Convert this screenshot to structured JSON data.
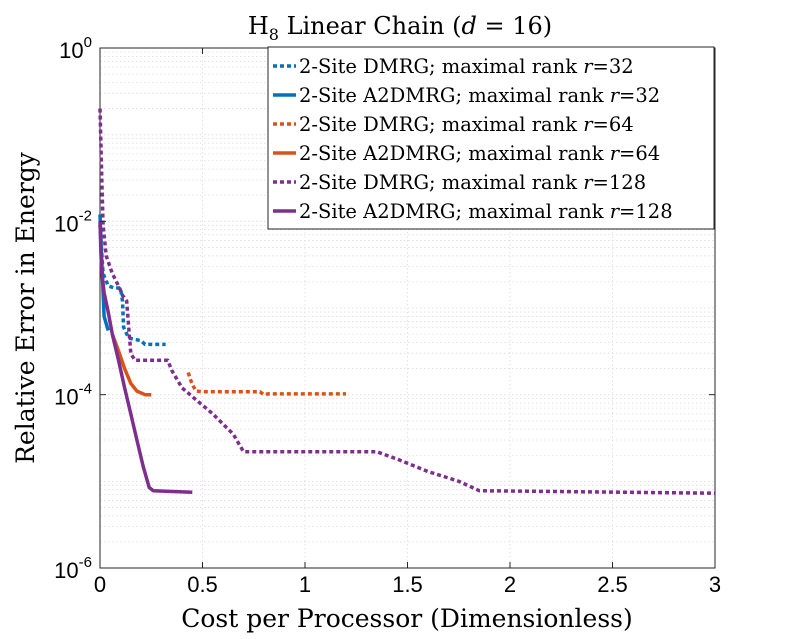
{
  "chart_data": {
    "type": "line",
    "title": "H₈ Linear Chain (d = 16)",
    "title_parts": {
      "main": "H",
      "sub": "8",
      "rest": " Linear Chain (",
      "var": "d",
      "eq": " = 16)"
    },
    "xlabel": "Cost per Processor (Dimensionless)",
    "ylabel": "Relative Error in Energy",
    "xlim": [
      0,
      3
    ],
    "ylim": [
      1e-06,
      1
    ],
    "yscale": "log",
    "grid": true,
    "legend_position": "top-right",
    "x_ticks": [
      {
        "value": 0,
        "label": "0"
      },
      {
        "value": 0.5,
        "label": "0.5"
      },
      {
        "value": 1,
        "label": "1"
      },
      {
        "value": 1.5,
        "label": "1.5"
      },
      {
        "value": 2,
        "label": "2"
      },
      {
        "value": 2.5,
        "label": "2.5"
      },
      {
        "value": 3,
        "label": "3"
      }
    ],
    "y_ticks": [
      {
        "value": 1e-06,
        "base": "10",
        "exp": "-6"
      },
      {
        "value": 0.0001,
        "base": "10",
        "exp": "-4"
      },
      {
        "value": 0.01,
        "base": "10",
        "exp": "-2"
      },
      {
        "value": 1,
        "base": "10",
        "exp": "0"
      }
    ],
    "series": [
      {
        "name": "2-Site DMRG; maximal rank r=32",
        "label_text": "2-Site DMRG; maximal rank ",
        "label_var": "r",
        "label_val": "=32",
        "color": "#0072BD",
        "style": "dotted",
        "x": [
          0,
          0.015,
          0.04,
          0.07,
          0.1,
          0.11,
          0.115,
          0.14,
          0.2,
          0.22,
          0.3,
          0.32
        ],
        "y": [
          0.009,
          0.0025,
          0.0018,
          0.0017,
          0.0017,
          0.0012,
          0.0006,
          0.00045,
          0.00042,
          0.00038,
          0.00038,
          0.00038
        ]
      },
      {
        "name": "2-Site A2DMRG; maximal rank r=32",
        "label_text": "2-Site A2DMRG; maximal rank ",
        "label_var": "r",
        "label_val": "=32",
        "color": "#0072BD",
        "style": "solid",
        "x": [
          0,
          0.01,
          0.02,
          0.04
        ],
        "y": [
          0.012,
          0.003,
          0.0008,
          0.00055
        ]
      },
      {
        "name": "2-Site DMRG; maximal rank r=64",
        "label_text": "2-Site DMRG; maximal rank ",
        "label_var": "r",
        "label_val": "=64",
        "color": "#D95319",
        "style": "dotted",
        "x": [
          0.43,
          0.45,
          0.47,
          0.5,
          0.78,
          0.8,
          0.82,
          1.0,
          1.2
        ],
        "y": [
          0.00018,
          0.00013,
          0.00011,
          0.000108,
          0.000108,
          0.0001,
          0.000102,
          0.000102,
          0.000102
        ]
      },
      {
        "name": "2-Site A2DMRG; maximal rank r=64",
        "label_text": "2-Site A2DMRG; maximal rank ",
        "label_var": "r",
        "label_val": "=64",
        "color": "#D95319",
        "style": "solid",
        "x": [
          0.06,
          0.09,
          0.12,
          0.15,
          0.18,
          0.22,
          0.25
        ],
        "y": [
          0.0005,
          0.00032,
          0.0002,
          0.000135,
          0.00011,
          0.0001,
          0.0001
        ]
      },
      {
        "name": "2-Site DMRG; maximal rank r=128",
        "label_text": "2-Site DMRG; maximal rank ",
        "label_var": "r",
        "label_val": "=128",
        "color": "#7E2F8E",
        "style": "dotted",
        "x": [
          0,
          0.005,
          0.01,
          0.015,
          0.03,
          0.06,
          0.09,
          0.1,
          0.11,
          0.12,
          0.13,
          0.14,
          0.15,
          0.17,
          0.33,
          0.35,
          0.4,
          0.45,
          0.55,
          0.65,
          0.7,
          1.35,
          1.45,
          1.6,
          1.75,
          1.85,
          3.0
        ],
        "y": [
          0.2,
          0.07,
          0.025,
          0.009,
          0.004,
          0.0025,
          0.0018,
          0.0016,
          0.0014,
          0.0013,
          0.0012,
          0.0006,
          0.0003,
          0.00025,
          0.00025,
          0.00019,
          0.00012,
          9.5e-05,
          6e-05,
          3.5e-05,
          2.2e-05,
          2.2e-05,
          1.8e-05,
          1.3e-05,
          1e-05,
          7.8e-06,
          7.3e-06
        ]
      },
      {
        "name": "2-Site A2DMRG; maximal rank r=128",
        "label_text": "2-Site A2DMRG; maximal rank ",
        "label_var": "r",
        "label_val": "=128",
        "color": "#7E2F8E",
        "style": "solid",
        "x": [
          0,
          0.005,
          0.01,
          0.02,
          0.04,
          0.06,
          0.09,
          0.12,
          0.15,
          0.18,
          0.21,
          0.24,
          0.26,
          0.45
        ],
        "y": [
          0.01,
          0.004,
          0.0025,
          0.0015,
          0.0009,
          0.0005,
          0.00025,
          0.00012,
          6e-05,
          3e-05,
          1.5e-05,
          8.5e-06,
          7.8e-06,
          7.5e-06
        ]
      }
    ]
  }
}
